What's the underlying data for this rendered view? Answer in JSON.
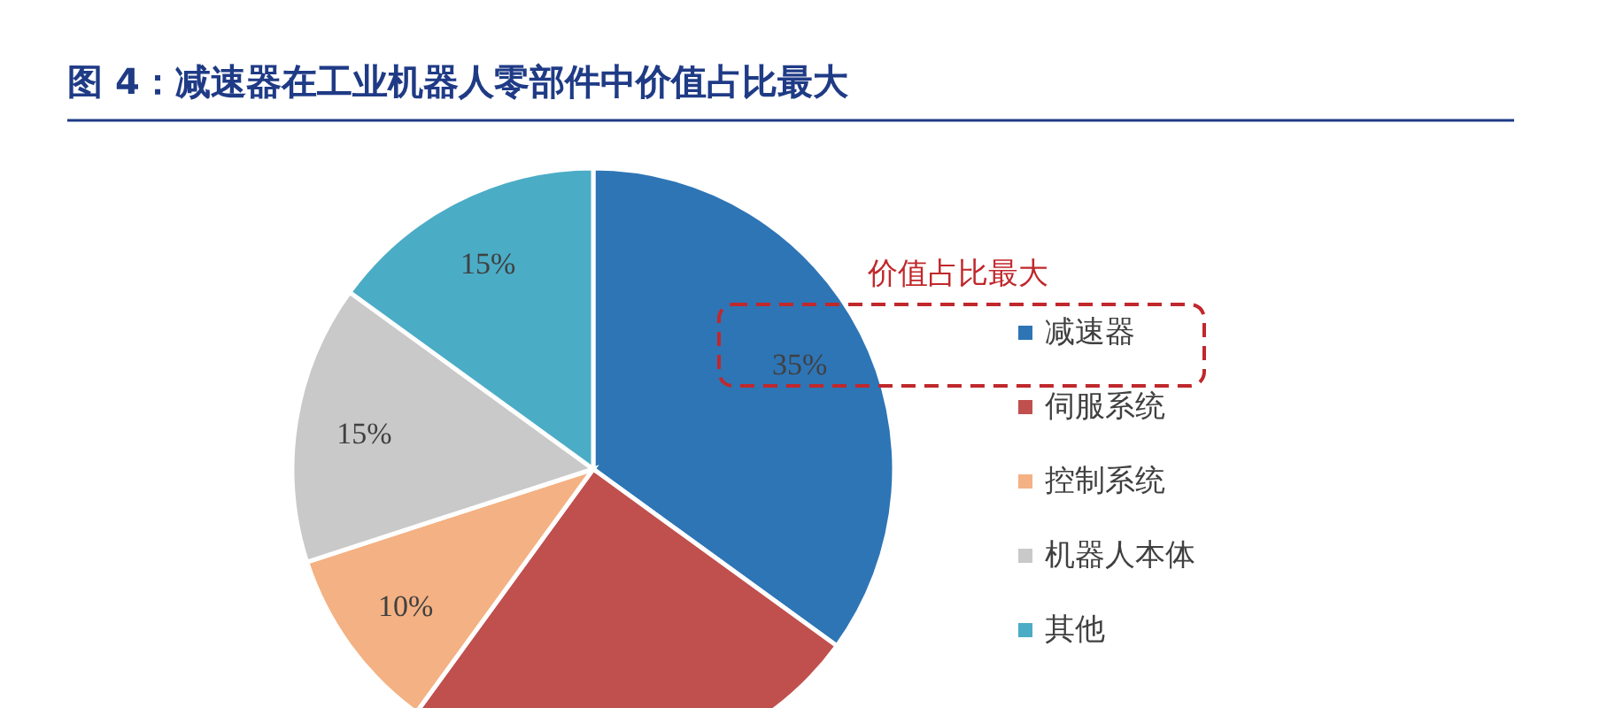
{
  "chart_data": {
    "type": "pie",
    "title": "**图 4**：减速器在工业机器人零部件中价值占比最大",
    "categories": [
      "减速器",
      "伺服系统",
      "控制系统",
      "机器人本体",
      "其他"
    ],
    "values": [
      35,
      25,
      10,
      15,
      15
    ],
    "colors": [
      "#2e75b6",
      "#c0504d",
      "#f4b183",
      "#c9c9c9",
      "#4bacc6"
    ],
    "value_labels": [
      "35%",
      null,
      "10%",
      "15%",
      "15%"
    ],
    "annotations": [
      "价值占比最大"
    ],
    "legend": "right"
  }
}
